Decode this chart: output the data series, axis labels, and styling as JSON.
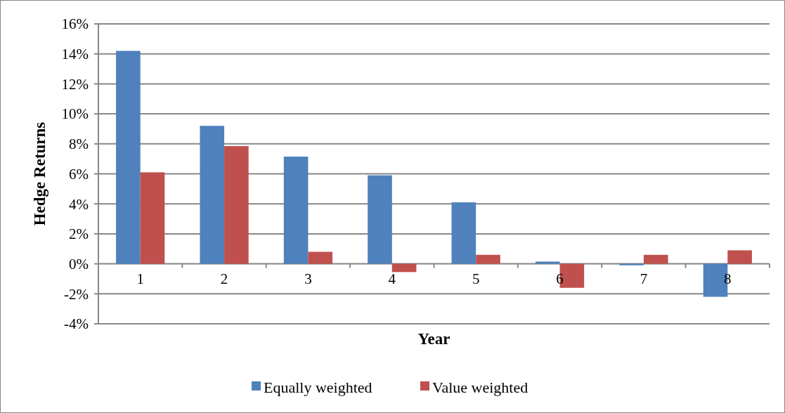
{
  "chart_data": {
    "type": "bar",
    "xlabel": "Year",
    "ylabel": "Hedge Returns",
    "categories": [
      "1",
      "2",
      "3",
      "4",
      "5",
      "6",
      "7",
      "8"
    ],
    "series": [
      {
        "name": "Equally weighted",
        "color": "#4f81bd",
        "values": [
          14.2,
          9.2,
          7.15,
          5.9,
          4.1,
          0.15,
          -0.1,
          -2.2
        ]
      },
      {
        "name": "Value weighted",
        "color": "#c0504d",
        "values": [
          6.1,
          7.85,
          0.8,
          -0.55,
          0.6,
          -1.6,
          0.6,
          0.9
        ]
      }
    ],
    "ylim": [
      -4,
      16
    ],
    "yticks": [
      {
        "value": -4,
        "label": "-4%"
      },
      {
        "value": -2,
        "label": "-2%"
      },
      {
        "value": 0,
        "label": "0%"
      },
      {
        "value": 2,
        "label": "2%"
      },
      {
        "value": 4,
        "label": "4%"
      },
      {
        "value": 6,
        "label": "6%"
      },
      {
        "value": 8,
        "label": "8%"
      },
      {
        "value": 10,
        "label": "10%"
      },
      {
        "value": 12,
        "label": "12%"
      },
      {
        "value": 14,
        "label": "14%"
      },
      {
        "value": 16,
        "label": "16%"
      }
    ],
    "grid": "y",
    "legend": "bottom"
  }
}
